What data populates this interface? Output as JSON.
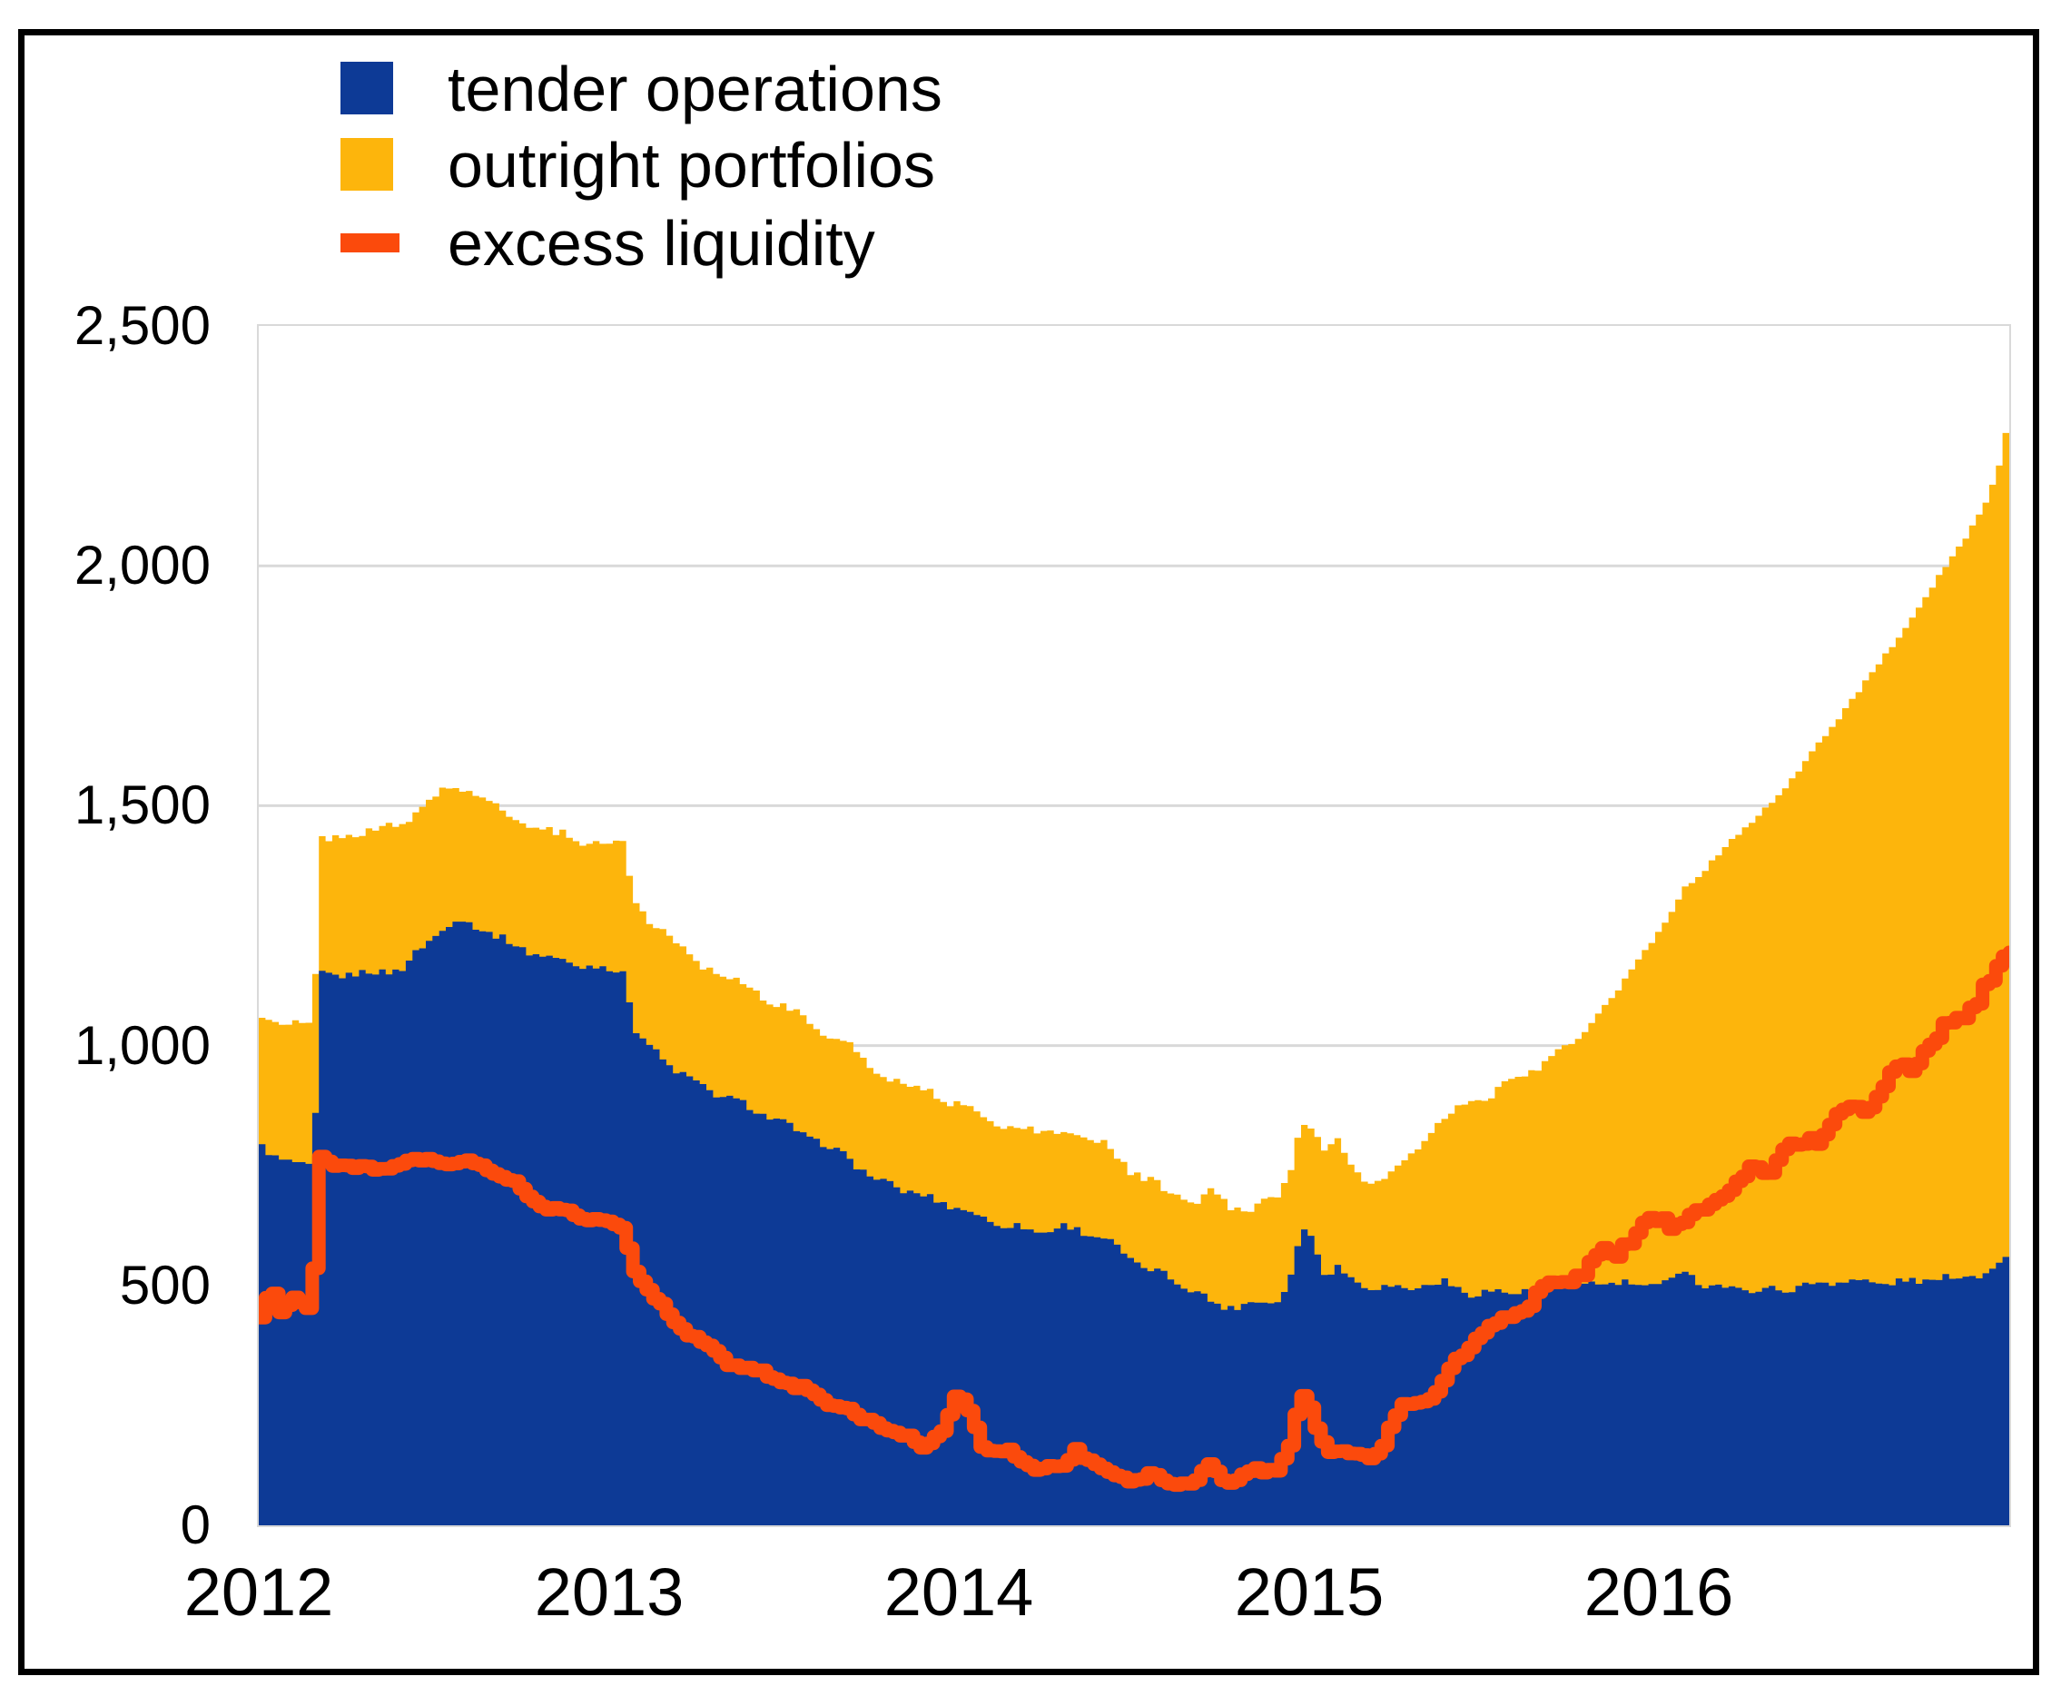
{
  "legend": {
    "items": [
      {
        "label": "tender operations",
        "color": "#0d3a96",
        "swatch": "square"
      },
      {
        "label": "outright portfolios",
        "color": "#fdb50c",
        "swatch": "square"
      },
      {
        "label": "excess liquidity",
        "color": "#fb4a0c",
        "swatch": "line"
      }
    ]
  },
  "chart_data": {
    "type": "area",
    "stacked": true,
    "title": "",
    "xlabel": "",
    "ylabel": "",
    "x_domain": [
      2012,
      2017
    ],
    "y_domain": [
      0,
      2500
    ],
    "x_tick_labels": [
      "2012",
      "2013",
      "2014",
      "2015",
      "2016"
    ],
    "x_tick_values": [
      2012,
      2013,
      2014,
      2015,
      2016
    ],
    "y_tick_labels": [
      "2,500",
      "2,000",
      "1,500",
      "1,000",
      "500",
      "0"
    ],
    "y_tick_values": [
      2500,
      2000,
      1500,
      1000,
      500,
      0
    ],
    "gridline_values": [
      500,
      1000,
      1500,
      2000
    ],
    "gridline_color": "#d9d9d9",
    "grid": true,
    "legend_position": "top-left",
    "series": [
      {
        "name": "tender operations",
        "type": "area-stacked",
        "color": "#0d3a96"
      },
      {
        "name": "outright portfolios",
        "type": "area-stacked",
        "color": "#fdb50c"
      },
      {
        "name": "excess liquidity",
        "type": "line",
        "color": "#fb4a0c",
        "stroke_width": 15
      }
    ],
    "point_columns": [
      "year",
      "tender_operations",
      "outright_portfolios",
      "excess_liquidity"
    ],
    "points": [
      [
        2012.0,
        790,
        270,
        430
      ],
      [
        2012.03,
        765,
        282,
        497
      ],
      [
        2012.06,
        758,
        285,
        440
      ],
      [
        2012.09,
        762,
        290,
        483
      ],
      [
        2012.13,
        748,
        293,
        452
      ],
      [
        2012.15,
        745,
        295,
        448
      ],
      [
        2012.16,
        1145,
        280,
        768
      ],
      [
        2012.22,
        1148,
        288,
        752
      ],
      [
        2012.3,
        1150,
        297,
        742
      ],
      [
        2012.4,
        1160,
        300,
        750
      ],
      [
        2012.48,
        1222,
        292,
        763
      ],
      [
        2012.55,
        1262,
        280,
        752
      ],
      [
        2012.62,
        1248,
        272,
        756
      ],
      [
        2012.7,
        1216,
        268,
        722
      ],
      [
        2012.75,
        1200,
        265,
        697
      ],
      [
        2012.83,
        1181,
        262,
        655
      ],
      [
        2012.92,
        1166,
        262,
        646
      ],
      [
        2013.0,
        1160,
        262,
        625
      ],
      [
        2013.04,
        1150,
        262,
        618
      ],
      [
        2013.06,
        1040,
        264,
        545
      ],
      [
        2013.09,
        1010,
        267,
        505
      ],
      [
        2013.17,
        956,
        264,
        430
      ],
      [
        2013.25,
        916,
        258,
        386
      ],
      [
        2013.33,
        891,
        252,
        346
      ],
      [
        2013.42,
        863,
        247,
        318
      ],
      [
        2013.5,
        833,
        243,
        298
      ],
      [
        2013.58,
        803,
        238,
        272
      ],
      [
        2013.67,
        769,
        233,
        246
      ],
      [
        2013.71,
        746,
        230,
        215
      ],
      [
        2013.74,
        724,
        228,
        223
      ],
      [
        2013.83,
        701,
        224,
        181
      ],
      [
        2013.9,
        683,
        220,
        166
      ],
      [
        2013.96,
        670,
        218,
        210
      ],
      [
        2013.99,
        661,
        216,
        272
      ],
      [
        2014.03,
        650,
        214,
        230
      ],
      [
        2014.07,
        636,
        212,
        158
      ],
      [
        2014.15,
        622,
        208,
        147
      ],
      [
        2014.22,
        612,
        205,
        115
      ],
      [
        2014.29,
        622,
        200,
        121
      ],
      [
        2014.33,
        616,
        198,
        163
      ],
      [
        2014.4,
        601,
        195,
        110
      ],
      [
        2014.5,
        545,
        185,
        100
      ],
      [
        2014.58,
        520,
        178,
        96
      ],
      [
        2014.66,
        492,
        178,
        86
      ],
      [
        2014.71,
        465,
        235,
        119
      ],
      [
        2014.76,
        455,
        205,
        98
      ],
      [
        2014.83,
        462,
        203,
        106
      ],
      [
        2014.9,
        470,
        215,
        122
      ],
      [
        2014.94,
        520,
        228,
        160
      ],
      [
        2014.97,
        622,
        222,
        262
      ],
      [
        2015.0,
        597,
        226,
        240
      ],
      [
        2015.04,
        522,
        254,
        166
      ],
      [
        2015.07,
        540,
        268,
        152
      ],
      [
        2015.11,
        512,
        242,
        142
      ],
      [
        2015.16,
        500,
        207,
        146
      ],
      [
        2015.21,
        496,
        231,
        172
      ],
      [
        2015.25,
        494,
        250,
        236
      ],
      [
        2015.33,
        500,
        310,
        263
      ],
      [
        2015.38,
        506,
        344,
        300
      ],
      [
        2015.46,
        481,
        400,
        390
      ],
      [
        2015.54,
        489,
        425,
        416
      ],
      [
        2015.62,
        484,
        455,
        462
      ],
      [
        2015.66,
        500,
        470,
        497
      ],
      [
        2015.71,
        504,
        490,
        509
      ],
      [
        2015.75,
        505,
        497,
        517
      ],
      [
        2015.83,
        505,
        573,
        557
      ],
      [
        2015.92,
        501,
        660,
        604
      ],
      [
        2016.0,
        500,
        750,
        647
      ],
      [
        2016.06,
        536,
        790,
        630
      ],
      [
        2016.12,
        500,
        860,
        660
      ],
      [
        2016.17,
        496,
        916,
        692
      ],
      [
        2016.25,
        491,
        970,
        726
      ],
      [
        2016.33,
        491,
        1030,
        766
      ],
      [
        2016.42,
        500,
        1100,
        800
      ],
      [
        2016.5,
        511,
        1170,
        842
      ],
      [
        2016.58,
        506,
        1254,
        881
      ],
      [
        2016.67,
        506,
        1336,
        936
      ],
      [
        2016.75,
        511,
        1420,
        989
      ],
      [
        2016.83,
        516,
        1506,
        1041
      ],
      [
        2016.92,
        526,
        1596,
        1106
      ],
      [
        2016.96,
        546,
        1656,
        1152
      ],
      [
        2016.98,
        561,
        1719,
        1186
      ],
      [
        2017.0,
        576,
        1679,
        1212
      ]
    ]
  }
}
